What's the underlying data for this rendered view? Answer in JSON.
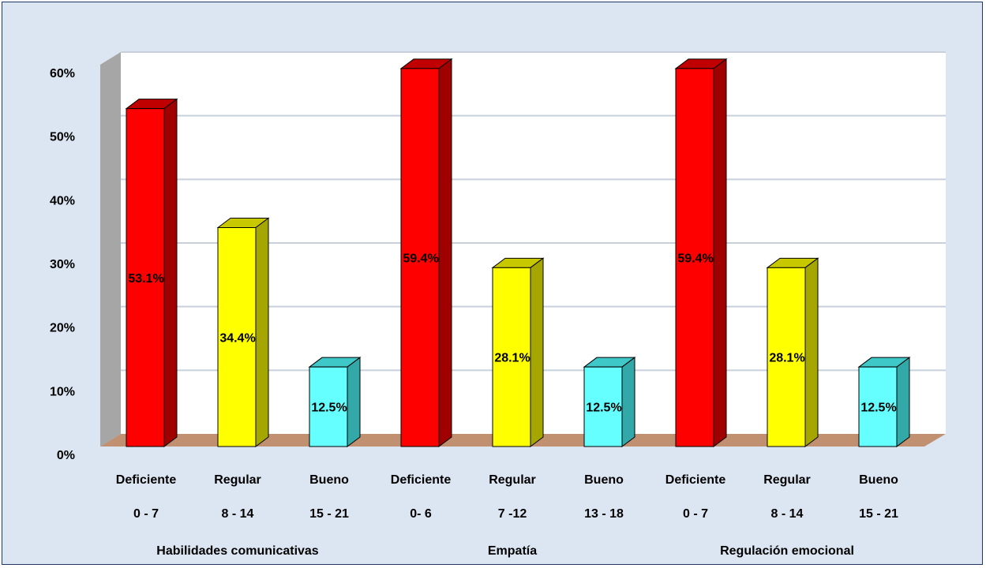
{
  "chart_data": {
    "type": "bar",
    "style": "3d-column",
    "title": "",
    "xlabel": "",
    "ylabel": "",
    "ylim": [
      0,
      60
    ],
    "y_ticks": [
      "0%",
      "10%",
      "20%",
      "30%",
      "40%",
      "50%",
      "60%"
    ],
    "grid": true,
    "legend": "none",
    "groups": [
      {
        "name": "Habilidades comunicativas",
        "categories": [
          {
            "label": "Deficiente",
            "range": "0 - 7",
            "value": 53.1,
            "value_label": "53.1%",
            "color": "red"
          },
          {
            "label": "Regular",
            "range": "8 - 14",
            "value": 34.4,
            "value_label": "34.4%",
            "color": "yellow"
          },
          {
            "label": "Bueno",
            "range": "15 - 21",
            "value": 12.5,
            "value_label": "12.5%",
            "color": "cyan"
          }
        ]
      },
      {
        "name": "Empatía",
        "categories": [
          {
            "label": "Deficiente",
            "range": "0- 6",
            "value": 59.4,
            "value_label": "59.4%",
            "color": "red"
          },
          {
            "label": "Regular",
            "range": "7 -12",
            "value": 28.1,
            "value_label": "28.1%",
            "color": "yellow"
          },
          {
            "label": "Bueno",
            "range": "13 - 18",
            "value": 12.5,
            "value_label": "12.5%",
            "color": "cyan"
          }
        ]
      },
      {
        "name": "Regulación emocional",
        "categories": [
          {
            "label": "Deficiente",
            "range": "0 - 7",
            "value": 59.4,
            "value_label": "59.4%",
            "color": "red"
          },
          {
            "label": "Regular",
            "range": "8 - 14",
            "value": 28.1,
            "value_label": "28.1%",
            "color": "yellow"
          },
          {
            "label": "Bueno",
            "range": "15 - 21",
            "value": 12.5,
            "value_label": "12.5%",
            "color": "cyan"
          }
        ]
      }
    ]
  },
  "colors": {
    "red": {
      "front": "#ff0000",
      "top": "#c00000",
      "side": "#a00000"
    },
    "yellow": {
      "front": "#ffff00",
      "top": "#c8c800",
      "side": "#a6a600"
    },
    "cyan": {
      "front": "#66ffff",
      "top": "#3fc8c8",
      "side": "#33a8a8"
    },
    "background": "#dce6f2",
    "plot_wall": "#ffffff",
    "side_wall": "#a6a6a6",
    "floor": "#c09070",
    "gridline": "#c8d0dc"
  }
}
